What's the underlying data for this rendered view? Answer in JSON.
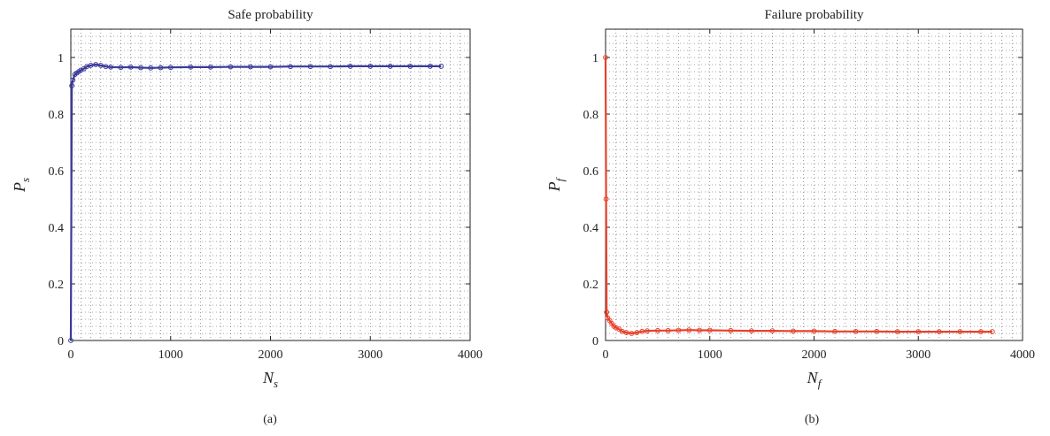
{
  "chart_data": [
    {
      "type": "line",
      "title": "Safe probability",
      "xlabel": "N",
      "xlabel_sub": "s",
      "ylabel": "P",
      "ylabel_sub": "s",
      "panel_label": "(a)",
      "xlim": [
        0,
        4000
      ],
      "ylim": [
        0,
        1.1
      ],
      "xticks": [
        0,
        1000,
        2000,
        3000,
        4000
      ],
      "yticks": [
        0,
        0.2,
        0.4,
        0.6,
        0.8,
        1
      ],
      "xtick_labels": [
        "0",
        "1000",
        "2000",
        "3000",
        "4000"
      ],
      "ytick_labels": [
        "0",
        "0.2",
        "0.4",
        "0.6",
        "0.8",
        "1"
      ],
      "grid": true,
      "color": "#3a3a9c",
      "series": [
        {
          "x": [
            0,
            10,
            20,
            40,
            60,
            80,
            100,
            130,
            160,
            200,
            250,
            300,
            350,
            400,
            500,
            600,
            700,
            800,
            900,
            1000,
            1200,
            1400,
            1600,
            1800,
            2000,
            2200,
            2400,
            2600,
            2800,
            3000,
            3200,
            3400,
            3600,
            3710
          ],
          "y": [
            0,
            0.9,
            0.92,
            0.94,
            0.945,
            0.95,
            0.955,
            0.96,
            0.968,
            0.972,
            0.975,
            0.972,
            0.968,
            0.966,
            0.965,
            0.966,
            0.964,
            0.963,
            0.964,
            0.965,
            0.966,
            0.966,
            0.967,
            0.967,
            0.967,
            0.968,
            0.968,
            0.968,
            0.969,
            0.969,
            0.969,
            0.969,
            0.969,
            0.969
          ]
        }
      ]
    },
    {
      "type": "line",
      "title": "Failure probability",
      "xlabel": "N",
      "xlabel_sub": "f",
      "ylabel": "P",
      "ylabel_sub": "f",
      "panel_label": "(b)",
      "xlim": [
        0,
        4000
      ],
      "ylim": [
        0,
        1.1
      ],
      "xticks": [
        0,
        1000,
        2000,
        3000,
        4000
      ],
      "yticks": [
        0,
        0.2,
        0.4,
        0.6,
        0.8,
        1
      ],
      "xtick_labels": [
        "0",
        "1000",
        "2000",
        "3000",
        "4000"
      ],
      "ytick_labels": [
        "0",
        "0.2",
        "0.4",
        "0.6",
        "0.8",
        "1"
      ],
      "grid": true,
      "color": "#e8412a",
      "series": [
        {
          "x": [
            0,
            5,
            10,
            20,
            40,
            60,
            80,
            100,
            130,
            160,
            200,
            250,
            300,
            350,
            400,
            500,
            600,
            700,
            800,
            900,
            1000,
            1200,
            1400,
            1600,
            1800,
            2000,
            2200,
            2400,
            2600,
            2800,
            3000,
            3200,
            3400,
            3600,
            3710
          ],
          "y": [
            1,
            0.5,
            0.1,
            0.08,
            0.07,
            0.06,
            0.05,
            0.045,
            0.04,
            0.032,
            0.028,
            0.025,
            0.028,
            0.032,
            0.034,
            0.035,
            0.035,
            0.036,
            0.037,
            0.036,
            0.036,
            0.035,
            0.034,
            0.034,
            0.033,
            0.033,
            0.032,
            0.032,
            0.032,
            0.031,
            0.031,
            0.031,
            0.031,
            0.031,
            0.031
          ]
        }
      ]
    }
  ]
}
